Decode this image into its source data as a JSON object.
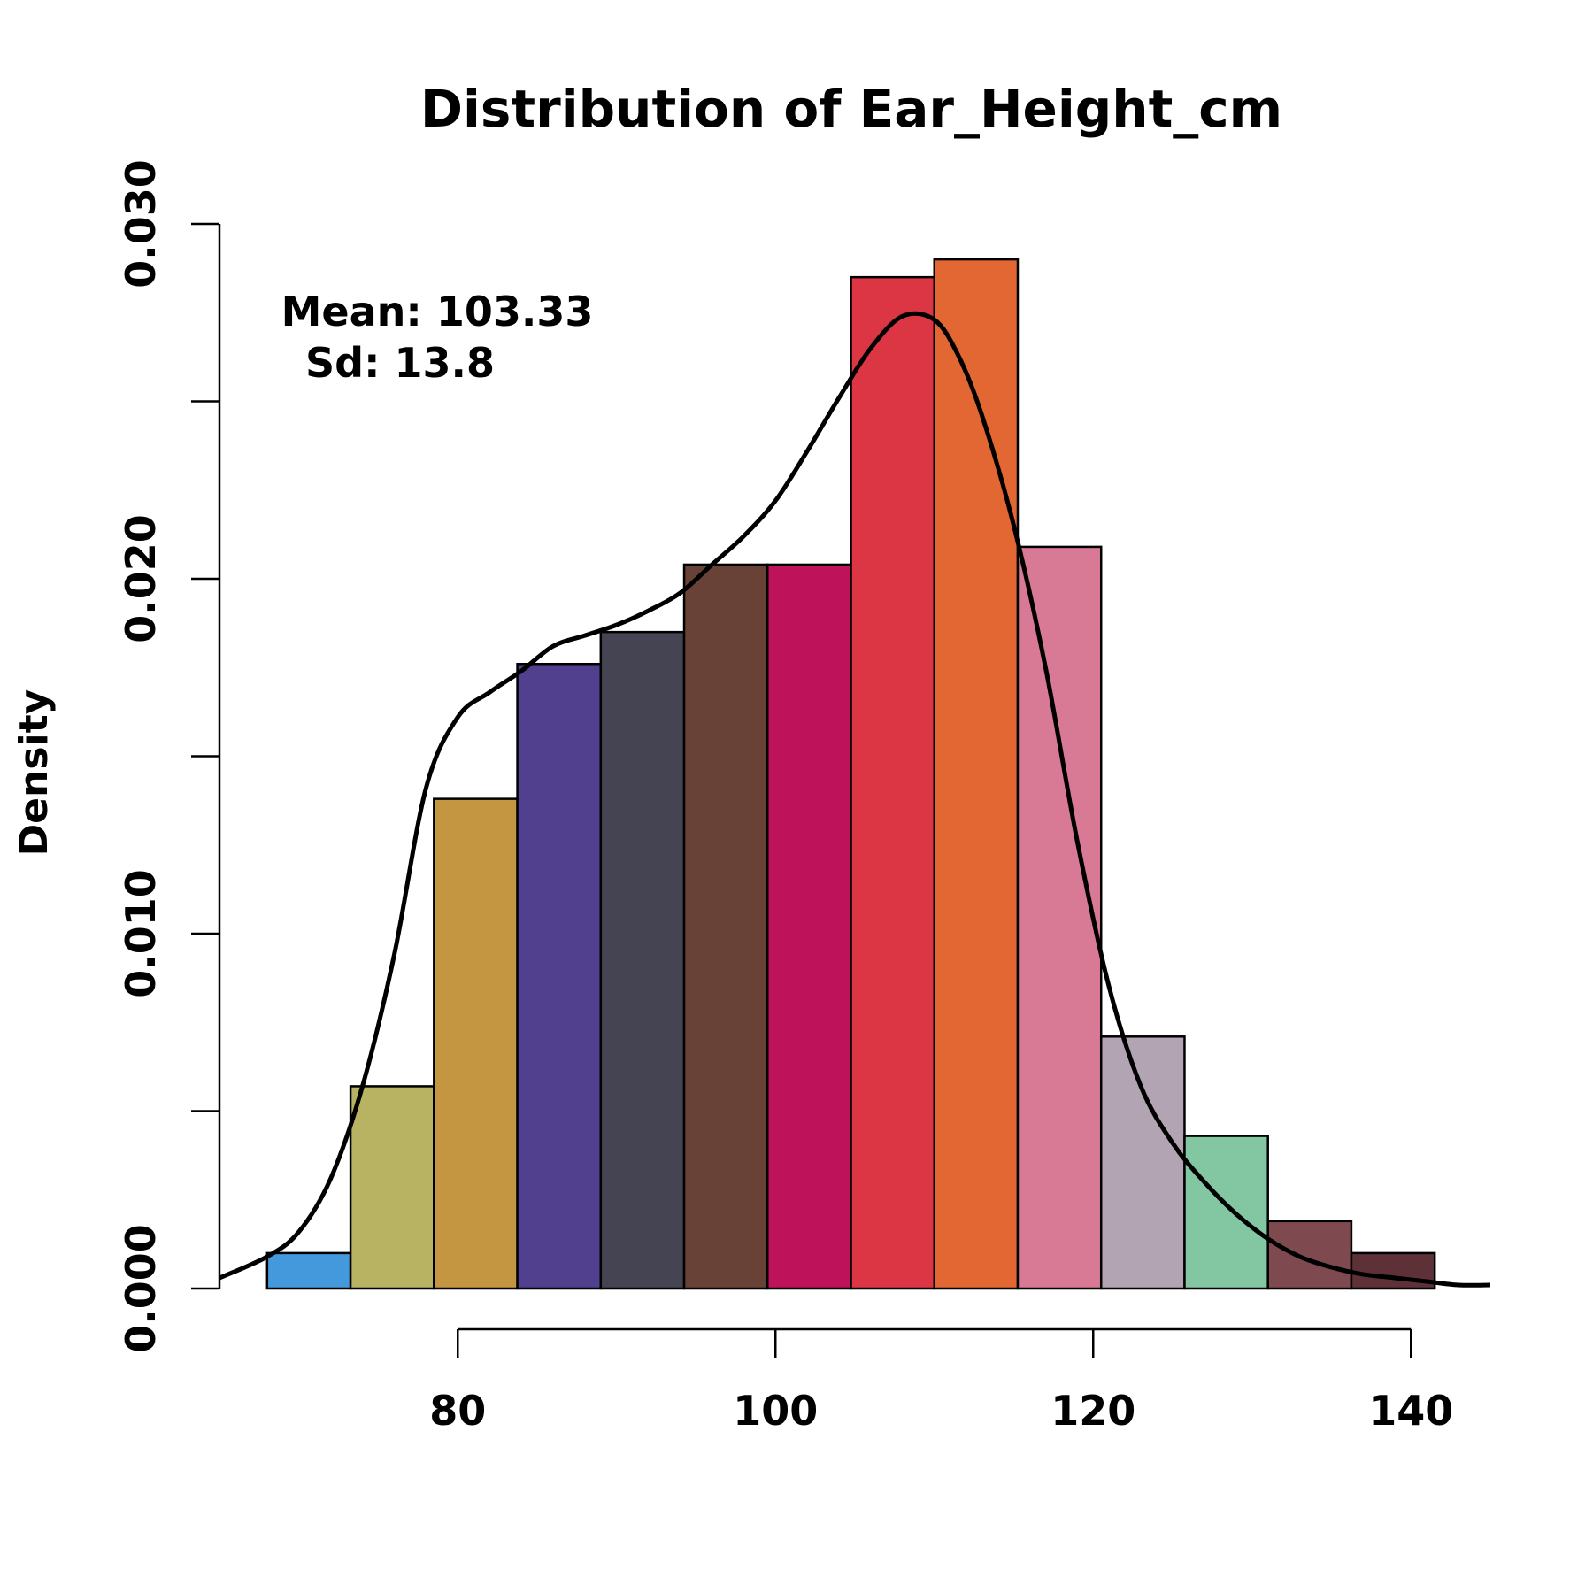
{
  "chart_data": {
    "type": "bar",
    "subtype": "histogram",
    "title": "Distribution of Ear_Height_cm",
    "xlabel": "",
    "ylabel": "Density",
    "xlim": [
      65,
      145
    ],
    "ylim": [
      0,
      0.03
    ],
    "x_ticks": [
      80,
      100,
      120,
      140
    ],
    "x_tick_labels": [
      "80",
      "100",
      "120",
      "140"
    ],
    "y_ticks": [
      0,
      0.005,
      0.01,
      0.015,
      0.02,
      0.025,
      0.03
    ],
    "y_tick_labels": [
      "0.000",
      "",
      "0.010",
      "",
      "0.020",
      "",
      "0.030"
    ],
    "grid": false,
    "legend": "none",
    "annotation": {
      "line1": "Mean: 103.33",
      "line2": "Sd: 13.8"
    },
    "bins": [
      {
        "x0": 68.0,
        "x1": 73.25,
        "density": 0.001,
        "color": "#4499DD"
      },
      {
        "x0": 73.25,
        "x1": 78.5,
        "density": 0.0057,
        "color": "#B8B263"
      },
      {
        "x0": 78.5,
        "x1": 83.75,
        "density": 0.0138,
        "color": "#C49641"
      },
      {
        "x0": 83.75,
        "x1": 89.0,
        "density": 0.0176,
        "color": "#51408D"
      },
      {
        "x0": 89.0,
        "x1": 94.25,
        "density": 0.0185,
        "color": "#454452"
      },
      {
        "x0": 94.25,
        "x1": 99.5,
        "density": 0.0204,
        "color": "#684236"
      },
      {
        "x0": 99.5,
        "x1": 104.75,
        "density": 0.0204,
        "color": "#BE135B"
      },
      {
        "x0": 104.75,
        "x1": 110.0,
        "density": 0.0285,
        "color": "#DC3644"
      },
      {
        "x0": 110.0,
        "x1": 115.25,
        "density": 0.029,
        "color": "#E36732"
      },
      {
        "x0": 115.25,
        "x1": 120.5,
        "density": 0.0209,
        "color": "#D87A96"
      },
      {
        "x0": 120.5,
        "x1": 125.75,
        "density": 0.0071,
        "color": "#B2A4B2"
      },
      {
        "x0": 125.75,
        "x1": 131.0,
        "density": 0.0043,
        "color": "#83C6A2"
      },
      {
        "x0": 131.0,
        "x1": 136.25,
        "density": 0.0019,
        "color": "#7F4A4F"
      },
      {
        "x0": 136.25,
        "x1": 141.5,
        "density": 0.001,
        "color": "#5E3138"
      }
    ],
    "density_curve": {
      "x": [
        65,
        68,
        70,
        72,
        74,
        76,
        78,
        80,
        82,
        84,
        86,
        88,
        90,
        92,
        94,
        96,
        98,
        100,
        102,
        104,
        106,
        108,
        110,
        111.5,
        113,
        115,
        117,
        119,
        121,
        123,
        125,
        127,
        129,
        131,
        133,
        135,
        137,
        139,
        141,
        143,
        145
      ],
      "y": [
        0.0003,
        0.0009,
        0.0016,
        0.0031,
        0.0057,
        0.0094,
        0.0141,
        0.0161,
        0.0168,
        0.0174,
        0.0181,
        0.0184,
        0.0187,
        0.0191,
        0.0196,
        0.0204,
        0.0212,
        0.0222,
        0.0236,
        0.0251,
        0.0265,
        0.0274,
        0.0273,
        0.0263,
        0.0246,
        0.0215,
        0.0175,
        0.0126,
        0.0085,
        0.0057,
        0.0041,
        0.003,
        0.0021,
        0.0014,
        0.0009,
        0.0006,
        0.0004,
        0.0003,
        0.0002,
        0.0001,
        0.0001
      ]
    }
  }
}
